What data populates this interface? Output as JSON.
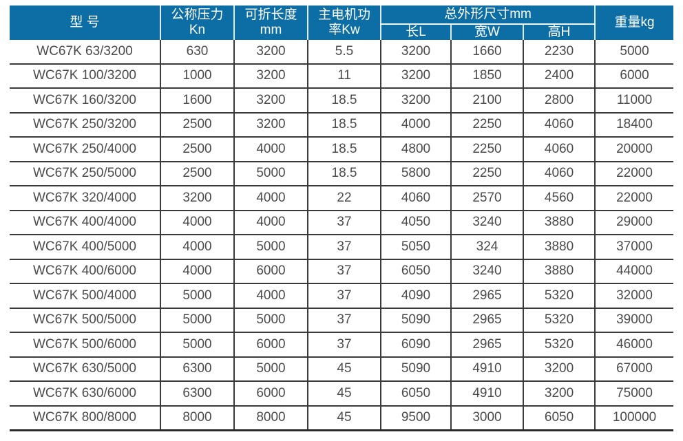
{
  "colors": {
    "header_bg": "#0d6ea6",
    "header_text": "#ffffff",
    "body_text": "#4b4b4b",
    "grid_line": "#3a3a3a",
    "header_divider": "#dcebf4"
  },
  "table": {
    "headers": {
      "model": "型 号",
      "pressure_line1": "公称压力",
      "pressure_line2": "Kn",
      "length_line1": "可折长度",
      "length_line2": "mm",
      "power_line1": "主电机功",
      "power_line2": "率Kw",
      "dimensions_group": "总外形尺寸mm",
      "dim_length": "长L",
      "dim_width": "宽W",
      "dim_height": "高H",
      "weight": "重量kg"
    },
    "rows": [
      [
        "WC67K 63/3200",
        "630",
        "3200",
        "5.5",
        "3200",
        "1660",
        "2230",
        "5000"
      ],
      [
        "WC67K 100/3200",
        "1000",
        "3200",
        "11",
        "3200",
        "1850",
        "2400",
        "6000"
      ],
      [
        "WC67K 160/3200",
        "1600",
        "3200",
        "18.5",
        "3200",
        "2100",
        "2800",
        "11000"
      ],
      [
        "WC67K 250/3200",
        "2500",
        "3200",
        "18.5",
        "4000",
        "2250",
        "4060",
        "18400"
      ],
      [
        "WC67K 250/4000",
        "2500",
        "4000",
        "18.5",
        "4800",
        "2250",
        "4060",
        "20000"
      ],
      [
        "WC67K 250/5000",
        "2500",
        "5000",
        "18.5",
        "5800",
        "2250",
        "4060",
        "22000"
      ],
      [
        "WC67K 320/4000",
        "3200",
        "4000",
        "22",
        "4060",
        "2570",
        "4560",
        "22000"
      ],
      [
        "WC67K 400/4000",
        "4000",
        "4000",
        "37",
        "4050",
        "3240",
        "3880",
        "29000"
      ],
      [
        "WC67K 400/5000",
        "4000",
        "5000",
        "37",
        "5050",
        "324",
        "3880",
        "37000"
      ],
      [
        "WC67K 400/6000",
        "4000",
        "6000",
        "37",
        "6050",
        "3240",
        "3880",
        "44000"
      ],
      [
        "WC67K 500/4000",
        "5000",
        "4000",
        "37",
        "4090",
        "2965",
        "5320",
        "32000"
      ],
      [
        "WC67K 500/5000",
        "5000",
        "5000",
        "37",
        "5090",
        "2965",
        "5320",
        "39000"
      ],
      [
        "WC67K 500/6000",
        "5000",
        "6000",
        "37",
        "6090",
        "2965",
        "5320",
        "46000"
      ],
      [
        "WC67K 630/5000",
        "6300",
        "5000",
        "45",
        "5090",
        "4910",
        "3200",
        "67000"
      ],
      [
        "WC67K 630/6000",
        "6300",
        "6000",
        "45",
        "6050",
        "4910",
        "3200",
        "75000"
      ],
      [
        "WC67K 800/8000",
        "8000",
        "8000",
        "45",
        "9500",
        "3000",
        "6050",
        "100000"
      ]
    ]
  }
}
